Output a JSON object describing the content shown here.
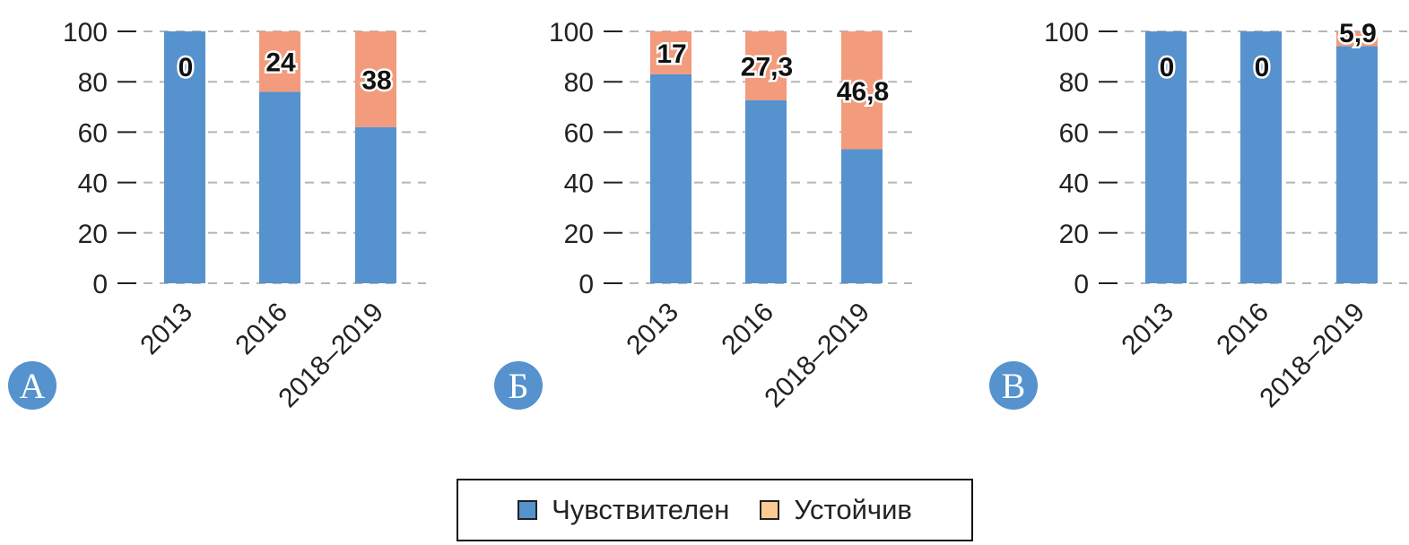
{
  "colors": {
    "sensitive": "#5592CE",
    "resistant": "#F29B7D",
    "legend_resistant": "#FCCB93",
    "badge": "#5592CE",
    "grid": "#b5b5b5",
    "axis": "#222222"
  },
  "legend": {
    "items": [
      {
        "label": "Чувствителен",
        "color": "#5592CE"
      },
      {
        "label": "Устойчив",
        "color": "#FCCB93"
      }
    ]
  },
  "chart_data": [
    {
      "type": "bar",
      "stacked": true,
      "panel_label": "А",
      "categories": [
        "2013",
        "2016",
        "2018–2019"
      ],
      "series": [
        {
          "name": "Чувствителен",
          "values": [
            100,
            76,
            62
          ]
        },
        {
          "name": "Устойчив",
          "values": [
            0,
            24,
            38
          ]
        }
      ],
      "data_labels": [
        "0",
        "24",
        "38"
      ],
      "yticks": [
        "0",
        "20",
        "40",
        "60",
        "80",
        "100"
      ],
      "ylim": [
        0,
        100
      ],
      "grid": true
    },
    {
      "type": "bar",
      "stacked": true,
      "panel_label": "Б",
      "categories": [
        "2013",
        "2016",
        "2018–2019"
      ],
      "series": [
        {
          "name": "Чувствителен",
          "values": [
            83,
            72.7,
            53.2
          ]
        },
        {
          "name": "Устойчив",
          "values": [
            17,
            27.3,
            46.8
          ]
        }
      ],
      "data_labels": [
        "17",
        "27,3",
        "46,8"
      ],
      "yticks": [
        "0",
        "20",
        "40",
        "60",
        "80",
        "100"
      ],
      "ylim": [
        0,
        100
      ],
      "grid": true
    },
    {
      "type": "bar",
      "stacked": true,
      "panel_label": "В",
      "categories": [
        "2013",
        "2016",
        "2018–2019"
      ],
      "series": [
        {
          "name": "Чувствителен",
          "values": [
            100,
            100,
            94.1
          ]
        },
        {
          "name": "Устойчив",
          "values": [
            0,
            0,
            5.9
          ]
        }
      ],
      "data_labels": [
        "0",
        "0",
        "5,9"
      ],
      "yticks": [
        "0",
        "20",
        "40",
        "60",
        "80",
        "100"
      ],
      "ylim": [
        0,
        100
      ],
      "grid": true
    }
  ]
}
